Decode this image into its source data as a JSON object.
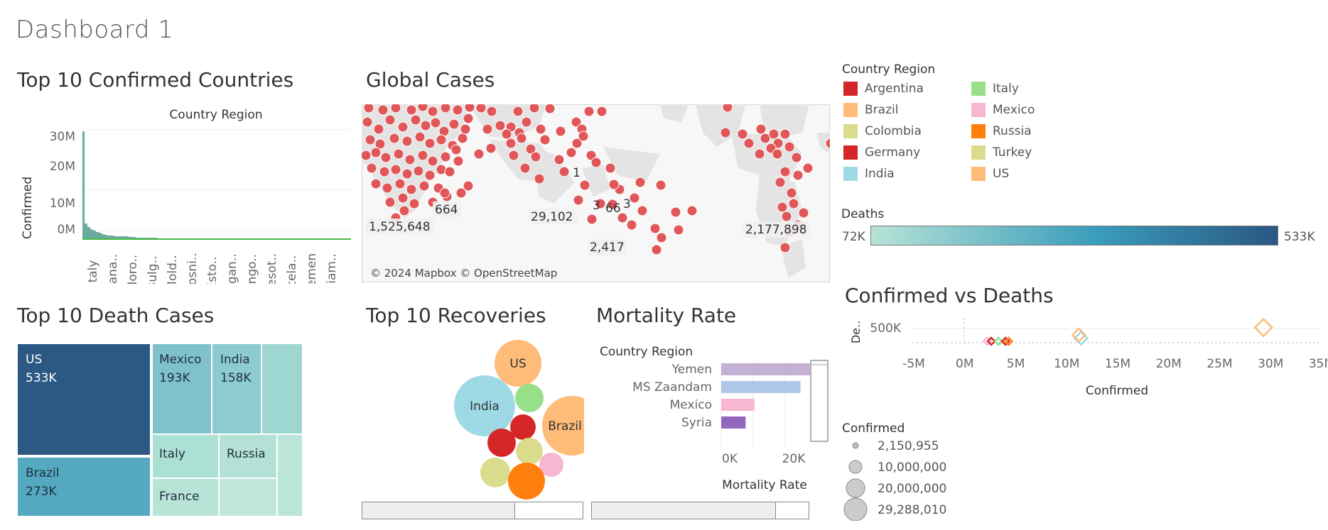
{
  "dashboard": {
    "title": "Dashboard 1"
  },
  "top_confirmed": {
    "title": "Top 10 Confirmed Countries",
    "header": "Country Region",
    "ylabel": "Confirmed",
    "yticks": [
      "30M",
      "20M",
      "10M",
      "0M"
    ],
    "categories": [
      "Italy",
      "Cana..",
      "Moro..",
      "Bulg..",
      "Mold..",
      "Bosni..",
      "Esto..",
      "Ugan..",
      "Ango..",
      "Lesot..",
      "Icela..",
      "Yemen",
      "Diam.."
    ],
    "bar_color": "#6aab9c"
  },
  "global_cases": {
    "title": "Global Cases",
    "attribution": "© 2024 Mapbox © OpenStreetMap",
    "labels": [
      "1,525,648",
      "664",
      "29,102",
      "1",
      "3",
      "66",
      "3",
      "2,417",
      "2,177,898"
    ],
    "point_color": "#e15759"
  },
  "country_legend": {
    "title": "Country Region",
    "items": [
      {
        "label": "Argentina",
        "color": "#d62728"
      },
      {
        "label": "Brazil",
        "color": "#ffbb78"
      },
      {
        "label": "Colombia",
        "color": "#dbdb8d"
      },
      {
        "label": "Germany",
        "color": "#d62728"
      },
      {
        "label": "India",
        "color": "#9edae5"
      },
      {
        "label": "Italy",
        "color": "#98df8a"
      },
      {
        "label": "Mexico",
        "color": "#f7b6d2"
      },
      {
        "label": "Russia",
        "color": "#ff7f0e"
      },
      {
        "label": "Turkey",
        "color": "#dbdb8d"
      },
      {
        "label": "US",
        "color": "#ffbb78"
      }
    ]
  },
  "deaths_legend": {
    "title": "Deaths",
    "min": "72K",
    "max": "533K",
    "color_start": "#b7e3d7",
    "color_mid": "#3a9dbb",
    "color_end": "#2a5783"
  },
  "top_deaths": {
    "title": "Top 10 Death Cases",
    "cells": [
      {
        "name": "US",
        "value": "533K"
      },
      {
        "name": "Brazil",
        "value": "273K"
      },
      {
        "name": "Mexico",
        "value": "193K"
      },
      {
        "name": "India",
        "value": "158K"
      },
      {
        "name": "Italy",
        "value": ""
      },
      {
        "name": "Russia",
        "value": ""
      },
      {
        "name": "France",
        "value": ""
      }
    ]
  },
  "top_recoveries": {
    "title": "Top 10 Recoveries",
    "labels": [
      "US",
      "India",
      "Brazil"
    ]
  },
  "mortality_rate": {
    "title": "Mortality Rate",
    "header": "Country Region",
    "xlabel": "Mortality Rate",
    "xticks": [
      "0K",
      "20K"
    ],
    "chart_data": {
      "type": "bar",
      "categories": [
        "Yemen",
        "MS Zaandam",
        "Mexico",
        "Syria"
      ],
      "values": [
        28000,
        25000,
        10500,
        7700
      ],
      "colors": [
        "#c5b0d5",
        "#aec7e8",
        "#f7b6d2",
        "#9467bd"
      ],
      "xlabel": "Mortality Rate",
      "xlim": [
        0,
        28000
      ]
    }
  },
  "confirmed_vs_deaths": {
    "title": "Confirmed vs Deaths",
    "ylabel": "De..",
    "xlabel": "Confirmed",
    "ytick": "500K",
    "chart_data": {
      "type": "scatter",
      "xlabel": "Confirmed",
      "ylabel": "De..",
      "xticks": [
        "-5M",
        "0M",
        "5M",
        "10M",
        "15M",
        "20M",
        "25M",
        "30M",
        "35M"
      ],
      "xlim": [
        -5000000,
        35000000
      ],
      "points": [
        {
          "x": 2200000,
          "y": 55000,
          "color": "#f7b6d2"
        },
        {
          "x": 2600000,
          "y": 50000,
          "color": "#d62728"
        },
        {
          "x": 3300000,
          "y": 45000,
          "color": "#98df8a"
        },
        {
          "x": 4000000,
          "y": 50000,
          "color": "#d62728"
        },
        {
          "x": 4300000,
          "y": 48000,
          "color": "#ff7f0e"
        },
        {
          "x": 11400000,
          "y": 158000,
          "color": "#9edae5"
        },
        {
          "x": 11200000,
          "y": 273000,
          "color": "#ffbb78"
        },
        {
          "x": 29300000,
          "y": 533000,
          "color": "#ffbb78"
        }
      ]
    }
  },
  "size_legend": {
    "title": "Confirmed",
    "items": [
      "2,150,955",
      "10,000,000",
      "20,000,000",
      "29,288,010"
    ]
  }
}
